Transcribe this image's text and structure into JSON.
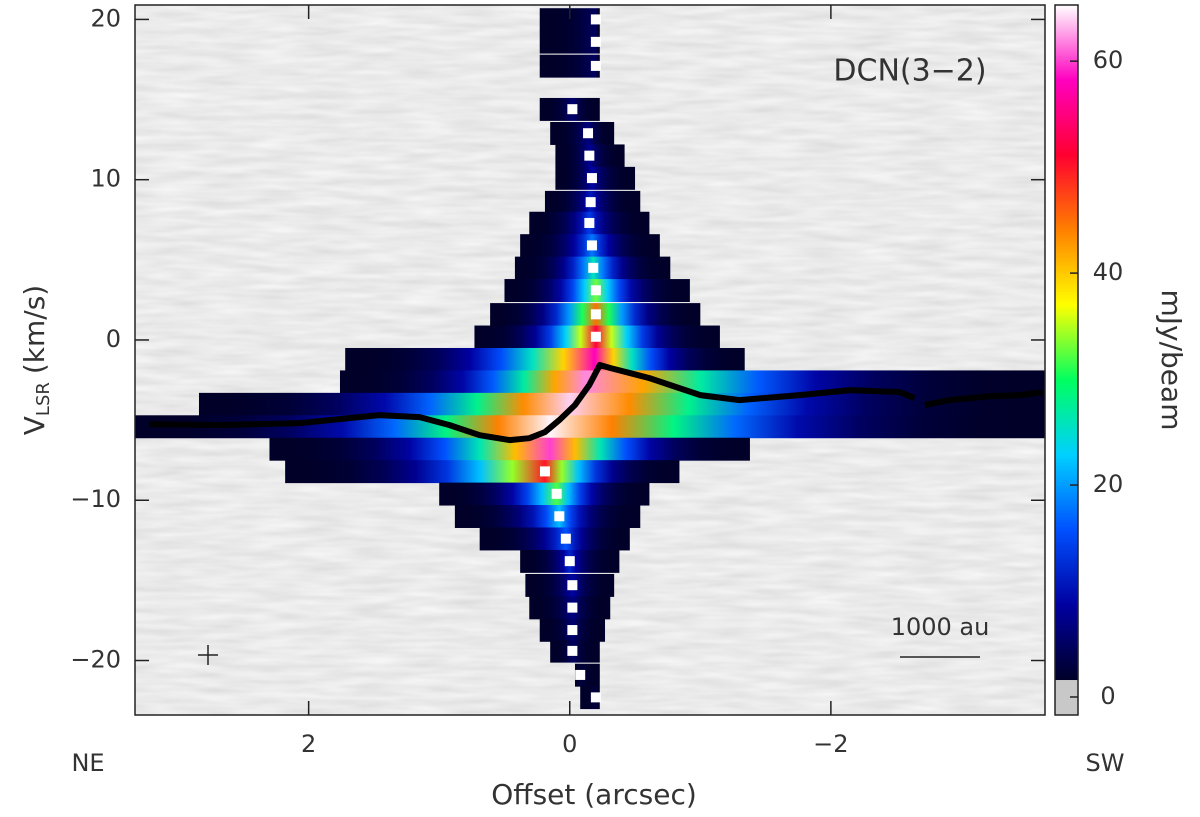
{
  "chart_data": {
    "type": "pv-diagram",
    "annotation": "DCN(3−2)",
    "scale_bar_label": "1000 au",
    "left_label": "NE",
    "right_label": "SW",
    "xlabel": "Offset (arcsec)",
    "ylabel": {
      "main": "V",
      "sub": "LSR",
      "unit": "(km/s)"
    },
    "colorbar_label": "mJy/beam",
    "xlim": [
      3.33,
      -3.64
    ],
    "ylim": [
      -23.4,
      20.9
    ],
    "clim": [
      -1.7,
      65.3
    ],
    "xticks": [
      2,
      0,
      {
        "value": -2,
        "label": "−2"
      }
    ],
    "yticks": [
      20,
      10,
      0,
      {
        "value": -10,
        "label": "−10"
      },
      {
        "value": -20,
        "label": "−20"
      }
    ],
    "cticks": [
      0,
      20,
      40,
      60
    ],
    "mask_threshold": 1.6,
    "mask_color": "#c8c8c8",
    "colormap": [
      "#000028",
      "#0000a0",
      "#0050ff",
      "#00d0ff",
      "#00ff60",
      "#ffff00",
      "#ff8000",
      "#ff0030",
      "#ff00c0",
      "#ffffff"
    ],
    "channel_width": 1.4,
    "emission": [
      {
        "v": 20,
        "x1": 0.23,
        "x2": -0.23,
        "peak_x": -0.2,
        "peak": 5
      },
      {
        "v": 18.6,
        "x1": 0.23,
        "x2": -0.23,
        "peak_x": -0.2,
        "peak": 5
      },
      {
        "v": 17.1,
        "x1": 0.23,
        "x2": -0.23,
        "peak_x": -0.2,
        "peak": 5
      },
      {
        "v": 14.4,
        "x1": 0.23,
        "x2": -0.23,
        "peak_x": -0.02,
        "peak": 6
      },
      {
        "v": 12.9,
        "x1": 0.15,
        "x2": -0.34,
        "peak_x": -0.14,
        "peak": 7
      },
      {
        "v": 11.5,
        "x1": 0.11,
        "x2": -0.42,
        "peak_x": -0.15,
        "peak": 8
      },
      {
        "v": 10.1,
        "x1": 0.11,
        "x2": -0.5,
        "peak_x": -0.17,
        "peak": 9
      },
      {
        "v": 8.6,
        "x1": 0.19,
        "x2": -0.54,
        "peak_x": -0.16,
        "peak": 11
      },
      {
        "v": 7.3,
        "x1": 0.31,
        "x2": -0.61,
        "peak_x": -0.15,
        "peak": 14
      },
      {
        "v": 5.9,
        "x1": 0.38,
        "x2": -0.69,
        "peak_x": -0.17,
        "peak": 18
      },
      {
        "v": 4.5,
        "x1": 0.42,
        "x2": -0.77,
        "peak_x": -0.18,
        "peak": 26
      },
      {
        "v": 3.1,
        "x1": 0.5,
        "x2": -0.92,
        "peak_x": -0.2,
        "peak": 33
      },
      {
        "v": 1.6,
        "x1": 0.61,
        "x2": -1.0,
        "peak_x": -0.2,
        "peak": 45
      },
      {
        "v": 0.2,
        "x1": 0.73,
        "x2": -1.15,
        "peak_x": -0.2,
        "peak": 52
      },
      {
        "v": -1.2,
        "x1": 1.72,
        "x2": -1.34,
        "peak_x": -0.19,
        "peak": 58
      },
      {
        "v": -2.6,
        "x1": 1.76,
        "x2": -3.64,
        "peak_x": -0.12,
        "peak": 62
      },
      {
        "v": -4.0,
        "x1": 2.84,
        "x2": -3.64,
        "peak_x": 0.0,
        "peak": 64
      },
      {
        "v": -5.4,
        "x1": 3.33,
        "x2": -3.64,
        "peak_x": 0.15,
        "peak": 65
      },
      {
        "v": -6.8,
        "x1": 2.3,
        "x2": -1.38,
        "peak_x": 0.15,
        "peak": 60
      },
      {
        "v": -8.2,
        "x1": 2.18,
        "x2": -0.84,
        "peak_x": 0.19,
        "peak": 50
      },
      {
        "v": -9.6,
        "x1": 1.0,
        "x2": -0.61,
        "peak_x": 0.1,
        "peak": 32
      },
      {
        "v": -11.0,
        "x1": 0.88,
        "x2": -0.54,
        "peak_x": 0.08,
        "peak": 22
      },
      {
        "v": -12.4,
        "x1": 0.69,
        "x2": -0.46,
        "peak_x": 0.03,
        "peak": 16
      },
      {
        "v": -13.8,
        "x1": 0.38,
        "x2": -0.38,
        "peak_x": 0.0,
        "peak": 12
      },
      {
        "v": -15.3,
        "x1": 0.34,
        "x2": -0.34,
        "peak_x": -0.02,
        "peak": 9
      },
      {
        "v": -16.7,
        "x1": 0.31,
        "x2": -0.31,
        "peak_x": -0.02,
        "peak": 7
      },
      {
        "v": -18.1,
        "x1": 0.23,
        "x2": -0.27,
        "peak_x": -0.02,
        "peak": 6
      },
      {
        "v": -19.4,
        "x1": 0.15,
        "x2": -0.23,
        "peak_x": -0.02,
        "peak": 5
      },
      {
        "v": -20.9,
        "x1": -0.04,
        "x2": -0.23,
        "peak_x": -0.08,
        "peak": 3
      },
      {
        "v": -22.3,
        "x1": -0.08,
        "x2": -0.23,
        "peak_x": -0.2,
        "peak": 3
      }
    ],
    "peaks": {
      "color": "#ffffff",
      "x": [
        -0.2,
        -0.2,
        -0.2,
        -0.02,
        -0.14,
        -0.15,
        -0.17,
        -0.16,
        -0.15,
        -0.17,
        -0.18,
        -0.2,
        -0.2,
        -0.2,
        0.19,
        0.1,
        0.08,
        0.03,
        0.0,
        -0.02,
        -0.02,
        -0.02,
        -0.02,
        -0.08,
        -0.2
      ],
      "y": [
        20,
        18.6,
        17.1,
        14.4,
        12.9,
        11.5,
        10.1,
        8.6,
        7.3,
        5.9,
        4.5,
        3.1,
        1.6,
        0.2,
        -8.2,
        -9.6,
        -11.0,
        -12.4,
        -13.8,
        -15.3,
        -16.7,
        -18.1,
        -19.4,
        -20.9,
        -22.3
      ]
    },
    "ridge": {
      "color": "#000000",
      "x": [
        3.22,
        2.68,
        2.07,
        1.84,
        1.46,
        1.15,
        0.92,
        0.69,
        0.46,
        0.31,
        0.19,
        0.08,
        -0.04,
        -0.15,
        -0.23,
        -0.31,
        -0.61,
        -1.0,
        -1.3,
        -1.76,
        -2.15,
        -2.53,
        -2.64,
        null,
        -2.72,
        -2.91,
        -3.22,
        -3.45,
        -3.62
      ],
      "y": [
        -5.25,
        -5.31,
        -5.19,
        -5.0,
        -4.69,
        -4.81,
        -5.31,
        -5.94,
        -6.25,
        -6.13,
        -5.75,
        -5.0,
        -4.06,
        -2.81,
        -1.56,
        -1.75,
        -2.38,
        -3.44,
        -3.75,
        -3.44,
        -3.13,
        -3.25,
        -3.63,
        null,
        -4.06,
        -3.75,
        -3.5,
        -3.44,
        -3.25
      ]
    }
  }
}
